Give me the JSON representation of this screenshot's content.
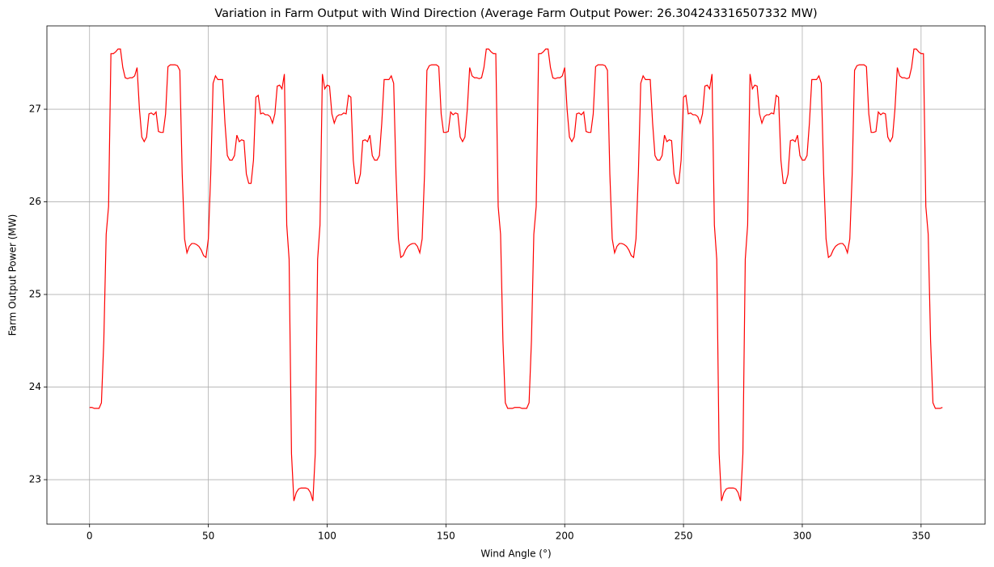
{
  "chart_data": {
    "type": "line",
    "title": "Variation in Farm Output with Wind Direction (Average Farm Output Power: 26.304243316507332 MW)",
    "x_label": "Wind Angle (°)",
    "y_label": "Farm Output Power (MW)",
    "color": "#ff0000",
    "grid": true,
    "xlim": [
      -17.95,
      376.95
    ],
    "ylim": [
      22.52,
      27.9
    ],
    "xticks": [
      0,
      50,
      100,
      150,
      200,
      250,
      300,
      350
    ],
    "yticks": [
      23,
      24,
      25,
      26,
      27
    ],
    "x": [
      0,
      1,
      2,
      3,
      4,
      5,
      6,
      7,
      8,
      9,
      10,
      11,
      12,
      13,
      14,
      15,
      16,
      17,
      18,
      19,
      20,
      21,
      22,
      23,
      24,
      25,
      26,
      27,
      28,
      29,
      30,
      31,
      32,
      33,
      34,
      35,
      36,
      37,
      38,
      39,
      40,
      41,
      42,
      43,
      44,
      45,
      46,
      47,
      48,
      49,
      50,
      51,
      52,
      53,
      54,
      55,
      56,
      57,
      58,
      59,
      60,
      61,
      62,
      63,
      64,
      65,
      66,
      67,
      68,
      69,
      70,
      71,
      72,
      73,
      74,
      75,
      76,
      77,
      78,
      79,
      80,
      81,
      82,
      83,
      84,
      85,
      86,
      87,
      88,
      89,
      90,
      91,
      92,
      93,
      94,
      95,
      96,
      97,
      98,
      99,
      100,
      101,
      102,
      103,
      104,
      105,
      106,
      107,
      108,
      109,
      110,
      111,
      112,
      113,
      114,
      115,
      116,
      117,
      118,
      119,
      120,
      121,
      122,
      123,
      124,
      125,
      126,
      127,
      128,
      129,
      130,
      131,
      132,
      133,
      134,
      135,
      136,
      137,
      138,
      139,
      140,
      141,
      142,
      143,
      144,
      145,
      146,
      147,
      148,
      149,
      150,
      151,
      152,
      153,
      154,
      155,
      156,
      157,
      158,
      159,
      160,
      161,
      162,
      163,
      164,
      165,
      166,
      167,
      168,
      169,
      170,
      171,
      172,
      173,
      174,
      175,
      176,
      177,
      178,
      179,
      180,
      181,
      182,
      183,
      184,
      185,
      186,
      187,
      188,
      189,
      190,
      191,
      192,
      193,
      194,
      195,
      196,
      197,
      198,
      199,
      200,
      201,
      202,
      203,
      204,
      205,
      206,
      207,
      208,
      209,
      210,
      211,
      212,
      213,
      214,
      215,
      216,
      217,
      218,
      219,
      220,
      221,
      222,
      223,
      224,
      225,
      226,
      227,
      228,
      229,
      230,
      231,
      232,
      233,
      234,
      235,
      236,
      237,
      238,
      239,
      240,
      241,
      242,
      243,
      244,
      245,
      246,
      247,
      248,
      249,
      250,
      251,
      252,
      253,
      254,
      255,
      256,
      257,
      258,
      259,
      260,
      261,
      262,
      263,
      264,
      265,
      266,
      267,
      268,
      269,
      270,
      271,
      272,
      273,
      274,
      275,
      276,
      277,
      278,
      279,
      280,
      281,
      282,
      283,
      284,
      285,
      286,
      287,
      288,
      289,
      290,
      291,
      292,
      293,
      294,
      295,
      296,
      297,
      298,
      299,
      300,
      301,
      302,
      303,
      304,
      305,
      306,
      307,
      308,
      309,
      310,
      311,
      312,
      313,
      314,
      315,
      316,
      317,
      318,
      319,
      320,
      321,
      322,
      323,
      324,
      325,
      326,
      327,
      328,
      329,
      330,
      331,
      332,
      333,
      334,
      335,
      336,
      337,
      338,
      339,
      340,
      341,
      342,
      343,
      344,
      345,
      346,
      347,
      348,
      349,
      350,
      351,
      352,
      353,
      354,
      355,
      356,
      357,
      358,
      359
    ],
    "values": [
      23.78,
      23.78,
      23.77,
      23.77,
      23.77,
      23.83,
      24.5,
      25.65,
      25.95,
      27.6,
      27.6,
      27.62,
      27.65,
      27.65,
      27.45,
      27.34,
      27.33,
      27.34,
      27.34,
      27.36,
      27.45,
      27.0,
      26.7,
      26.65,
      26.7,
      26.95,
      26.96,
      26.94,
      26.97,
      26.76,
      26.75,
      26.75,
      26.95,
      27.46,
      27.48,
      27.48,
      27.48,
      27.47,
      27.42,
      26.3,
      25.6,
      25.45,
      25.52,
      25.55,
      25.55,
      25.54,
      25.52,
      25.48,
      25.42,
      25.4,
      25.6,
      26.3,
      27.28,
      27.36,
      27.32,
      27.32,
      27.32,
      26.85,
      26.5,
      26.45,
      26.45,
      26.5,
      26.72,
      26.65,
      26.67,
      26.66,
      26.3,
      26.2,
      26.2,
      26.45,
      27.13,
      27.15,
      26.95,
      26.96,
      26.94,
      26.94,
      26.92,
      26.85,
      26.95,
      27.25,
      27.26,
      27.22,
      27.38,
      25.75,
      25.38,
      23.28,
      22.77,
      22.86,
      22.9,
      22.91,
      22.91,
      22.91,
      22.9,
      22.86,
      22.77,
      23.28,
      25.38,
      25.75,
      27.38,
      27.22,
      27.26,
      27.25,
      26.95,
      26.85,
      26.92,
      26.94,
      26.94,
      26.96,
      26.95,
      27.15,
      27.13,
      26.45,
      26.2,
      26.2,
      26.3,
      26.66,
      26.67,
      26.65,
      26.72,
      26.5,
      26.45,
      26.45,
      26.5,
      26.85,
      27.32,
      27.32,
      27.32,
      27.36,
      27.28,
      26.3,
      25.6,
      25.4,
      25.42,
      25.48,
      25.52,
      25.54,
      25.55,
      25.55,
      25.52,
      25.45,
      25.6,
      26.3,
      27.42,
      27.47,
      27.48,
      27.48,
      27.48,
      27.46,
      26.95,
      26.75,
      26.75,
      26.76,
      26.97,
      26.94,
      26.96,
      26.95,
      26.7,
      26.65,
      26.7,
      27.0,
      27.45,
      27.36,
      27.34,
      27.34,
      27.33,
      27.34,
      27.45,
      27.65,
      27.65,
      27.62,
      27.6,
      27.6,
      25.95,
      25.65,
      24.5,
      23.83,
      23.77,
      23.77,
      23.77,
      23.78,
      23.78,
      23.78,
      23.77,
      23.77,
      23.77,
      23.83,
      24.5,
      25.65,
      25.95,
      27.6,
      27.6,
      27.62,
      27.65,
      27.65,
      27.45,
      27.34,
      27.33,
      27.34,
      27.34,
      27.36,
      27.45,
      27.0,
      26.7,
      26.65,
      26.7,
      26.95,
      26.96,
      26.94,
      26.97,
      26.76,
      26.75,
      26.75,
      26.95,
      27.46,
      27.48,
      27.48,
      27.48,
      27.47,
      27.42,
      26.3,
      25.6,
      25.45,
      25.52,
      25.55,
      25.55,
      25.54,
      25.52,
      25.48,
      25.42,
      25.4,
      25.6,
      26.3,
      27.28,
      27.36,
      27.32,
      27.32,
      27.32,
      26.85,
      26.5,
      26.45,
      26.45,
      26.5,
      26.72,
      26.65,
      26.67,
      26.66,
      26.3,
      26.2,
      26.2,
      26.45,
      27.13,
      27.15,
      26.95,
      26.96,
      26.94,
      26.94,
      26.92,
      26.85,
      26.95,
      27.25,
      27.26,
      27.22,
      27.38,
      25.75,
      25.38,
      23.28,
      22.77,
      22.86,
      22.9,
      22.91,
      22.91,
      22.91,
      22.9,
      22.86,
      22.77,
      23.28,
      25.38,
      25.75,
      27.38,
      27.22,
      27.26,
      27.25,
      26.95,
      26.85,
      26.92,
      26.94,
      26.94,
      26.96,
      26.95,
      27.15,
      27.13,
      26.45,
      26.2,
      26.2,
      26.3,
      26.66,
      26.67,
      26.65,
      26.72,
      26.5,
      26.45,
      26.45,
      26.5,
      26.85,
      27.32,
      27.32,
      27.32,
      27.36,
      27.28,
      26.3,
      25.6,
      25.4,
      25.42,
      25.48,
      25.52,
      25.54,
      25.55,
      25.55,
      25.52,
      25.45,
      25.6,
      26.3,
      27.42,
      27.47,
      27.48,
      27.48,
      27.48,
      27.46,
      26.95,
      26.75,
      26.75,
      26.76,
      26.97,
      26.94,
      26.96,
      26.95,
      26.7,
      26.65,
      26.7,
      27.0,
      27.45,
      27.36,
      27.34,
      27.34,
      27.33,
      27.34,
      27.45,
      27.65,
      27.65,
      27.62,
      27.6,
      27.6,
      25.95,
      25.65,
      24.5,
      23.83,
      23.77,
      23.77,
      23.77,
      23.78
    ]
  }
}
